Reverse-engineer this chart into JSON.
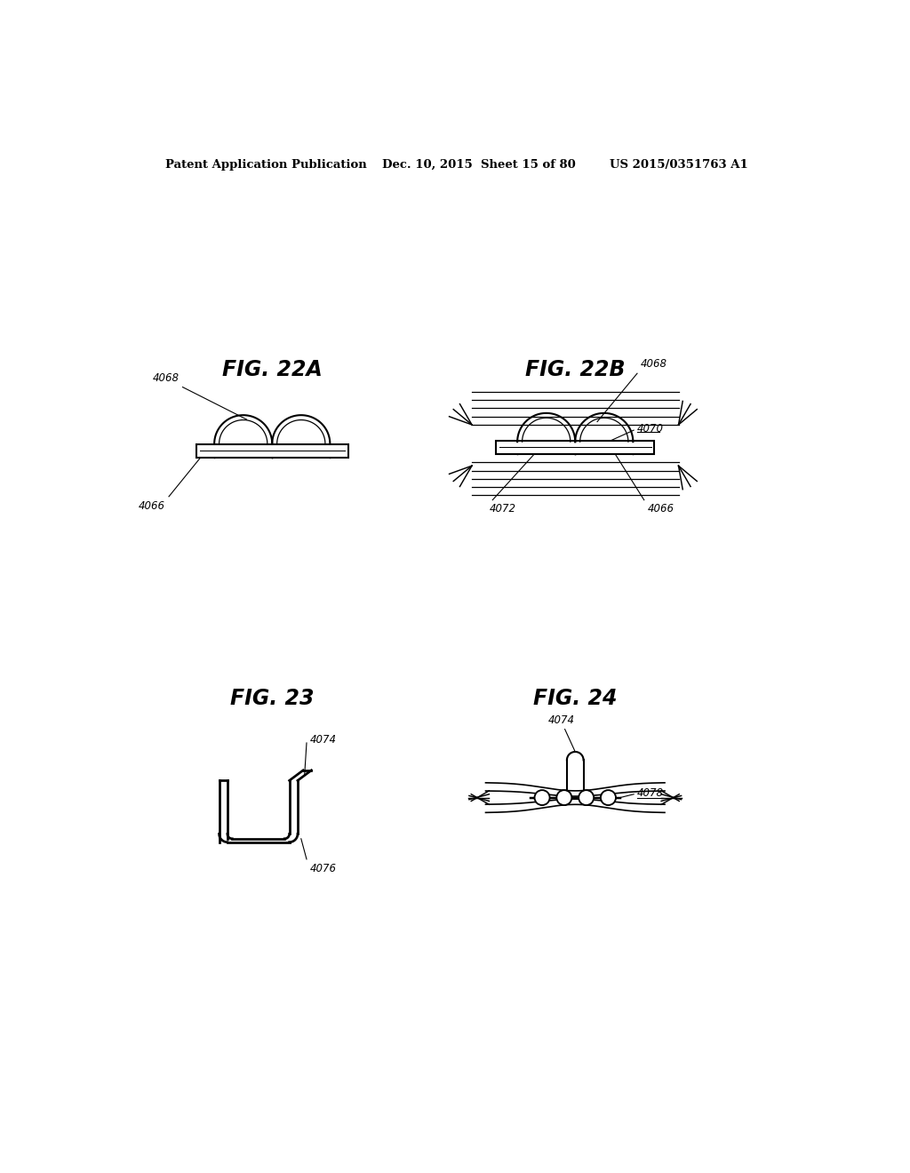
{
  "background_color": "#ffffff",
  "header_left": "Patent Application Publication",
  "header_mid": "Dec. 10, 2015  Sheet 15 of 80",
  "header_right": "US 2015/0351763 A1",
  "fig22a_title": "FIG. 22A",
  "fig22b_title": "FIG. 22B",
  "fig23_title": "FIG. 23",
  "fig24_title": "FIG. 24",
  "text_color": "#000000",
  "line_color": "#000000",
  "line_width": 1.5
}
